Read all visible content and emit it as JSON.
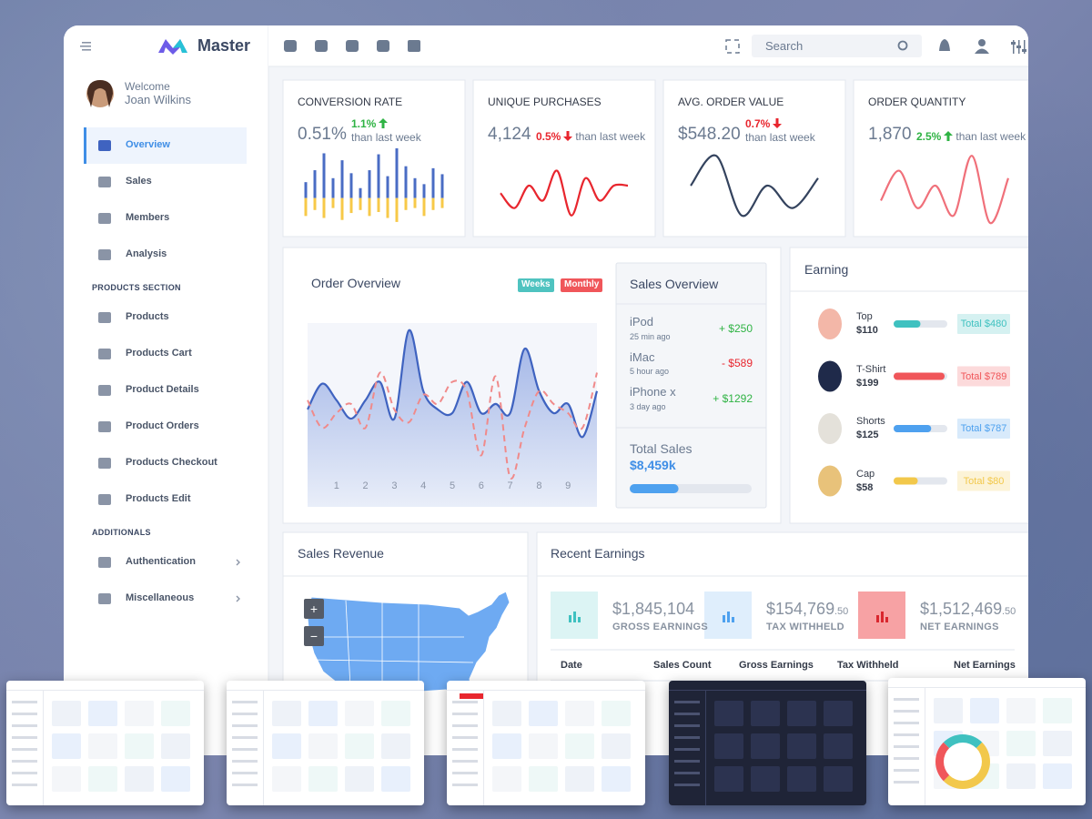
{
  "brand": "Master",
  "search": "Search",
  "user": {
    "greeting": "Welcome",
    "name": "Joan Wilkins"
  },
  "nav": {
    "active": 0,
    "main": [
      {
        "label": "Overview"
      },
      {
        "label": "Sales"
      },
      {
        "label": "Members"
      },
      {
        "label": "Analysis"
      }
    ],
    "sections": [
      {
        "title": "PRODUCTS SECTION",
        "items": [
          {
            "label": "Products"
          },
          {
            "label": "Products Cart"
          },
          {
            "label": "Product Details"
          },
          {
            "label": "Product Orders"
          },
          {
            "label": "Products Checkout"
          },
          {
            "label": "Products Edit"
          }
        ]
      },
      {
        "title": "ADDITIONALS",
        "items": [
          {
            "label": "Authentication",
            "submenu": true
          },
          {
            "label": "Miscellaneous",
            "submenu": true
          }
        ]
      }
    ]
  },
  "stats": [
    {
      "title": "CONVERSION RATE",
      "value": "0.51%",
      "change": "1.1%",
      "trend": "up",
      "note": "than last week",
      "chart": {
        "type": "bar",
        "ylim": [
          -25,
          50
        ],
        "series": [
          {
            "color": "#4a6cc4",
            "values": [
              16,
              28,
              45,
              20,
              38,
              25,
              10,
              28,
              44,
              22,
              50,
              32,
              20,
              14,
              30,
              24
            ]
          },
          {
            "color": "#f7c948",
            "values": [
              -18,
              -12,
              -20,
              -10,
              -22,
              -15,
              -12,
              -18,
              -14,
              -20,
              -24,
              -12,
              -10,
              -18,
              -12,
              -10
            ]
          }
        ]
      }
    },
    {
      "title": "UNIQUE PURCHASES",
      "value": "4,124",
      "change": "0.5%",
      "trend": "down",
      "note": "than last week",
      "chart": {
        "type": "line",
        "ylim": [
          0,
          10
        ],
        "series": [
          {
            "color": "#e8262e",
            "values": [
              4,
              2,
              5,
              3,
              7,
              1,
              6,
              3,
              5,
              5
            ]
          }
        ]
      }
    },
    {
      "title": "AVG. ORDER VALUE",
      "value": "$548.20",
      "change": "0.7%",
      "trend": "down",
      "note": "than last week",
      "chart": {
        "type": "line",
        "ylim": [
          0,
          10
        ],
        "series": [
          {
            "color": "#34435e",
            "values": [
              5,
              9,
              1,
              5,
              2,
              6
            ]
          }
        ]
      }
    },
    {
      "title": "ORDER QUANTITY",
      "value": "1,870",
      "change": "2.5%",
      "trend": "up",
      "note": "than last week",
      "chart": {
        "type": "line",
        "ylim": [
          0,
          10
        ],
        "series": [
          {
            "color": "#f0707a",
            "values": [
              3,
              7,
              2,
              5,
              1,
              9,
              0,
              6
            ]
          }
        ]
      }
    }
  ],
  "order_overview": {
    "title": "Order Overview",
    "buttons": [
      "Weeks",
      "Monthly"
    ],
    "chart": {
      "type": "line",
      "xlim": [
        0,
        10
      ],
      "ylim": [
        0,
        100
      ],
      "xticks": [
        1,
        2,
        3,
        4,
        5,
        6,
        7,
        8,
        9
      ],
      "x": [
        0,
        0.5,
        1,
        1.5,
        2,
        2.5,
        3,
        3.5,
        4,
        4.5,
        5,
        5.5,
        6,
        6.5,
        7,
        7.5,
        8,
        8.5,
        9,
        9.5,
        10
      ],
      "series": [
        {
          "color": "#3f63c0",
          "fill": true,
          "values": [
            53,
            67,
            58,
            48,
            58,
            68,
            48,
            96,
            63,
            53,
            51,
            68,
            51,
            56,
            51,
            86,
            63,
            51,
            56,
            38,
            63
          ]
        },
        {
          "color": "#f08a8a",
          "dashed": true,
          "values": [
            58,
            43,
            51,
            56,
            43,
            73,
            53,
            46,
            61,
            56,
            68,
            63,
            28,
            71,
            16,
            43,
            63,
            56,
            51,
            43,
            73
          ]
        }
      ]
    }
  },
  "sales_overview": {
    "title": "Sales Overview",
    "items": [
      {
        "name": "iPod",
        "time": "25 min ago",
        "amount": "+ $250",
        "trend": "up"
      },
      {
        "name": "iMac",
        "time": "5 hour ago",
        "amount": "- $589",
        "trend": "down"
      },
      {
        "name": "iPhone x",
        "time": "3 day ago",
        "amount": "+ $1292",
        "trend": "up"
      }
    ],
    "total_label": "Total Sales",
    "total": "$8,459k",
    "progress": 40
  },
  "earning": {
    "title": "Earning",
    "items": [
      {
        "name": "Top",
        "price": "$110",
        "progress": 50,
        "color": "#3fc1c0",
        "total": "Total $480"
      },
      {
        "name": "T-Shirt",
        "price": "$199",
        "progress": 95,
        "color": "#f0565a",
        "total": "Total $789"
      },
      {
        "name": "Shorts",
        "price": "$125",
        "progress": 70,
        "color": "#4ea1ef",
        "total": "Total $787"
      },
      {
        "name": "Cap",
        "price": "$58",
        "progress": 45,
        "color": "#f2c84b",
        "total": "Total $80"
      }
    ]
  },
  "sales_revenue": {
    "title": "Sales Revenue",
    "zoom_in": "+",
    "zoom_out": "−"
  },
  "recent_earnings": {
    "title": "Recent Earnings",
    "summary": [
      {
        "value": "$1,845,104",
        "label": "GROSS EARNINGS",
        "color": "#3fc1c0"
      },
      {
        "value": "$154,769",
        "value_small": ".50",
        "label": "TAX WITHHELD",
        "color": "#4ea1ef"
      },
      {
        "value": "$1,512,469",
        "value_small": ".50",
        "label": "NET EARNINGS",
        "color": "#f0565a"
      }
    ],
    "columns": [
      "Date",
      "Sales Count",
      "Gross Earnings",
      "Tax Withheld",
      "Net Earnings"
    ]
  }
}
